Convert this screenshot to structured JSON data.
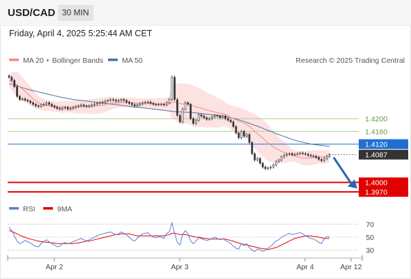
{
  "header": {
    "symbol": "USD/CAD",
    "timeframe": "30 MIN",
    "datetime": "Friday, April 4, 2025 5:25:44 AM CET"
  },
  "legend": {
    "ma20_label": "MA 20 + Bollinger Bands",
    "ma50_label": "MA 50",
    "credit": "Research © 2025 Trading Central",
    "rsi_label": "RSI",
    "ma9_label": "9MA"
  },
  "colors": {
    "ma20": "#f08a8a",
    "ma50": "#4a6fa5",
    "bands_fill": "#fde2e2",
    "candle": "#333333",
    "support_red": "#e00000",
    "resistance_green": "#a9d18e",
    "last_price_blue": "#1f6fd1",
    "arrow": "#2a64b0",
    "rsi": "#5b7fd6",
    "rsi_ma": "#e00000"
  },
  "chart_data": [
    {
      "type": "candlestick",
      "title": "USD/CAD 30 MIN",
      "ylim": [
        1.3955,
        1.436
      ],
      "x_tick_labels": [
        "Apr 2",
        "Apr 3",
        "Apr 4",
        "Apr 12"
      ],
      "price_levels": [
        {
          "label": "1.4200",
          "value": 1.42,
          "kind": "resistance"
        },
        {
          "label": "1.4160",
          "value": 1.416,
          "kind": "resistance"
        },
        {
          "label": "1.4120",
          "value": 1.412,
          "kind": "pivot"
        },
        {
          "label": "1.4087",
          "value": 1.4087,
          "kind": "last"
        },
        {
          "label": "1.4000",
          "value": 1.4,
          "kind": "support"
        },
        {
          "label": "1.3970",
          "value": 1.397,
          "kind": "support"
        }
      ],
      "close": [
        1.433,
        1.432,
        1.43,
        1.427,
        1.426,
        1.4262,
        1.4258,
        1.4255,
        1.425,
        1.4245,
        1.424,
        1.4238,
        1.4243,
        1.4245,
        1.425,
        1.4245,
        1.424,
        1.4236,
        1.4232,
        1.423,
        1.4233,
        1.4235,
        1.423,
        1.4232,
        1.4235,
        1.4238,
        1.424,
        1.4243,
        1.424,
        1.4238,
        1.424,
        1.4243,
        1.4246,
        1.4248,
        1.425,
        1.4252,
        1.4255,
        1.4257,
        1.426,
        1.4258,
        1.4255,
        1.4257,
        1.426,
        1.4257,
        1.4252,
        1.4248,
        1.4244,
        1.424,
        1.4243,
        1.4246,
        1.4249,
        1.4251,
        1.4252,
        1.4248,
        1.4245,
        1.4244,
        1.4245,
        1.4245,
        1.4243,
        1.425,
        1.426,
        1.433,
        1.426,
        1.421,
        1.419,
        1.423,
        1.425,
        1.4245,
        1.42,
        1.4185,
        1.4195,
        1.4212,
        1.4208,
        1.4203,
        1.4198,
        1.42,
        1.4205,
        1.421,
        1.4208,
        1.4203,
        1.4208,
        1.42,
        1.4195,
        1.419,
        1.4175,
        1.4155,
        1.414,
        1.416,
        1.4145,
        1.415,
        1.4125,
        1.409,
        1.407,
        1.4075,
        1.406,
        1.4048,
        1.4043,
        1.4045,
        1.4048,
        1.4055,
        1.4065,
        1.407,
        1.408,
        1.4085,
        1.4088,
        1.409,
        1.4087,
        1.4088,
        1.409,
        1.4092,
        1.409,
        1.4088,
        1.4085,
        1.4083,
        1.4082,
        1.4078,
        1.4072,
        1.4068,
        1.4075,
        1.4082,
        1.4087
      ],
      "ma20": [
        1.432,
        1.4316,
        1.4312,
        1.4306,
        1.43,
        1.4293,
        1.4286,
        1.4278,
        1.427,
        1.4262,
        1.4256,
        1.425,
        1.4246,
        1.4243,
        1.4241,
        1.424,
        1.4239,
        1.4238,
        1.4237,
        1.4237,
        1.4237,
        1.4237,
        1.4237,
        1.4237,
        1.4237,
        1.4237,
        1.4237,
        1.4238,
        1.4238,
        1.4238,
        1.4238,
        1.4238,
        1.4239,
        1.424,
        1.4241,
        1.4242,
        1.4244,
        1.4246,
        1.4248,
        1.4249,
        1.4249,
        1.425,
        1.425,
        1.425,
        1.425,
        1.425,
        1.425,
        1.4249,
        1.4249,
        1.4249,
        1.4249,
        1.4249,
        1.4248,
        1.4248,
        1.4247,
        1.4246,
        1.4246,
        1.4246,
        1.4246,
        1.4246,
        1.4246,
        1.4251,
        1.4252,
        1.425,
        1.4247,
        1.4246,
        1.4247,
        1.4247,
        1.4244,
        1.424,
        1.4237,
        1.4235,
        1.4233,
        1.423,
        1.4227,
        1.4225,
        1.4223,
        1.4221,
        1.4219,
        1.4217,
        1.4216,
        1.4213,
        1.421,
        1.4204,
        1.42,
        1.4197,
        1.4191,
        1.419,
        1.4185,
        1.4181,
        1.4176,
        1.4168,
        1.416,
        1.4153,
        1.4146,
        1.4139,
        1.4131,
        1.4124,
        1.4117,
        1.4111,
        1.4106,
        1.4102,
        1.4098,
        1.4094,
        1.4091,
        1.4088,
        1.4085,
        1.4083,
        1.408,
        1.4078,
        1.4076,
        1.4076,
        1.4076,
        1.4077,
        1.4078,
        1.4079,
        1.408,
        1.408,
        1.408,
        1.4081,
        1.4081
      ],
      "ma50": [
        1.431,
        1.4308,
        1.4306,
        1.4303,
        1.43,
        1.4297,
        1.4295,
        1.4292,
        1.429,
        1.4288,
        1.4286,
        1.4284,
        1.4282,
        1.428,
        1.4278,
        1.4276,
        1.4274,
        1.4272,
        1.427,
        1.4268,
        1.4266,
        1.4265,
        1.4263,
        1.4262,
        1.426,
        1.4259,
        1.4258,
        1.4257,
        1.4256,
        1.4255,
        1.4254,
        1.4253,
        1.4252,
        1.4251,
        1.425,
        1.4249,
        1.4248,
        1.4247,
        1.4246,
        1.4245,
        1.4244,
        1.4243,
        1.4242,
        1.4241,
        1.424,
        1.4239,
        1.4238,
        1.4237,
        1.4236,
        1.4235,
        1.4234,
        1.4233,
        1.4232,
        1.4231,
        1.423,
        1.4229,
        1.4228,
        1.4227,
        1.4226,
        1.4225,
        1.4224,
        1.4223,
        1.4222,
        1.4222,
        1.4221,
        1.4221,
        1.422,
        1.422,
        1.4219,
        1.4219,
        1.4218,
        1.4217,
        1.4216,
        1.4215,
        1.4214,
        1.4213,
        1.4212,
        1.4211,
        1.421,
        1.4209,
        1.4208,
        1.4207,
        1.4205,
        1.4203,
        1.4201,
        1.4199,
        1.4196,
        1.4194,
        1.4191,
        1.4188,
        1.4185,
        1.4182,
        1.4179,
        1.4176,
        1.4173,
        1.417,
        1.4166,
        1.4163,
        1.416,
        1.4157,
        1.4153,
        1.415,
        1.4147,
        1.4144,
        1.4141,
        1.4138,
        1.4135,
        1.4132,
        1.413,
        1.4128,
        1.4126,
        1.4124,
        1.4122,
        1.412,
        1.4119,
        1.4118,
        1.4117,
        1.4116,
        1.4115,
        1.4114,
        1.4113
      ],
      "bb_upper": [
        1.434,
        1.4345,
        1.4347,
        1.4346,
        1.434,
        1.433,
        1.432,
        1.431,
        1.43,
        1.429,
        1.428,
        1.4272,
        1.4266,
        1.4262,
        1.4258,
        1.4256,
        1.4255,
        1.4254,
        1.4254,
        1.4255,
        1.4256,
        1.4256,
        1.4255,
        1.4255,
        1.4256,
        1.4257,
        1.4258,
        1.4259,
        1.4259,
        1.426,
        1.4261,
        1.4262,
        1.4263,
        1.4264,
        1.4265,
        1.4266,
        1.4267,
        1.4268,
        1.4268,
        1.4267,
        1.4266,
        1.4265,
        1.4265,
        1.4265,
        1.4266,
        1.4266,
        1.4266,
        1.4265,
        1.4264,
        1.4263,
        1.4263,
        1.4263,
        1.4263,
        1.4264,
        1.4264,
        1.4264,
        1.4265,
        1.4265,
        1.4265,
        1.4266,
        1.427,
        1.43,
        1.431,
        1.431,
        1.431,
        1.431,
        1.431,
        1.431,
        1.4308,
        1.4305,
        1.43,
        1.4296,
        1.4292,
        1.4287,
        1.4283,
        1.4278,
        1.4274,
        1.427,
        1.4266,
        1.4262,
        1.4258,
        1.425,
        1.4246,
        1.4242,
        1.424,
        1.4238,
        1.4236,
        1.4233,
        1.423,
        1.4226,
        1.4222,
        1.4218,
        1.4214,
        1.421,
        1.4203,
        1.4197,
        1.419,
        1.418,
        1.417,
        1.416,
        1.415,
        1.4142,
        1.4135,
        1.4128,
        1.412,
        1.4112,
        1.4104,
        1.41,
        1.4099,
        1.4098,
        1.4098,
        1.4099,
        1.41,
        1.4101,
        1.4101,
        1.4101,
        1.4101,
        1.4101,
        1.4101,
        1.4101,
        1.41
      ],
      "bb_lower": [
        1.43,
        1.4287,
        1.4277,
        1.4266,
        1.426,
        1.4256,
        1.4252,
        1.4246,
        1.424,
        1.4234,
        1.4232,
        1.4228,
        1.4226,
        1.4224,
        1.4224,
        1.4224,
        1.4223,
        1.4222,
        1.422,
        1.4219,
        1.4218,
        1.4218,
        1.4219,
        1.4219,
        1.4218,
        1.4217,
        1.4216,
        1.4217,
        1.4217,
        1.4216,
        1.4215,
        1.4214,
        1.4215,
        1.4216,
        1.4217,
        1.4218,
        1.4221,
        1.4224,
        1.4228,
        1.4231,
        1.4232,
        1.4235,
        1.4235,
        1.4235,
        1.4234,
        1.4234,
        1.4234,
        1.4233,
        1.4234,
        1.4235,
        1.4235,
        1.4235,
        1.4233,
        1.4232,
        1.423,
        1.4228,
        1.4227,
        1.4227,
        1.4227,
        1.4226,
        1.4222,
        1.4202,
        1.4194,
        1.419,
        1.4184,
        1.4182,
        1.4184,
        1.4184,
        1.418,
        1.4175,
        1.4174,
        1.4174,
        1.4174,
        1.4173,
        1.4171,
        1.4172,
        1.4172,
        1.4172,
        1.4172,
        1.4172,
        1.4174,
        1.4176,
        1.4174,
        1.4166,
        1.416,
        1.4156,
        1.4146,
        1.4147,
        1.414,
        1.4136,
        1.413,
        1.4118,
        1.4106,
        1.4096,
        1.4089,
        1.4081,
        1.4072,
        1.4068,
        1.4064,
        1.4062,
        1.4062,
        1.4062,
        1.4061,
        1.406,
        1.4062,
        1.4064,
        1.4066,
        1.4066,
        1.4061,
        1.4058,
        1.4054,
        1.4053,
        1.4052,
        1.4053,
        1.4055,
        1.4057,
        1.4059,
        1.4059,
        1.4059,
        1.4061,
        1.4062
      ]
    },
    {
      "type": "line",
      "title": "RSI",
      "ylim": [
        20,
        80
      ],
      "y_ticks": [
        70,
        50,
        30
      ],
      "series": [
        {
          "name": "RSI",
          "values": [
            65,
            60,
            52,
            44,
            40,
            42,
            45,
            43,
            41,
            38,
            36,
            35,
            40,
            43,
            46,
            43,
            40,
            38,
            35,
            36,
            40,
            42,
            40,
            41,
            43,
            45,
            46,
            48,
            46,
            44,
            46,
            48,
            50,
            52,
            54,
            55,
            56,
            57,
            58,
            56,
            54,
            55,
            58,
            56,
            53,
            50,
            46,
            44,
            48,
            52,
            55,
            56,
            57,
            53,
            50,
            49,
            51,
            50,
            48,
            56,
            58,
            72,
            56,
            42,
            38,
            54,
            60,
            56,
            44,
            40,
            44,
            49,
            48,
            46,
            45,
            46,
            48,
            50,
            48,
            46,
            48,
            45,
            43,
            40,
            36,
            33,
            32,
            40,
            37,
            40,
            34,
            30,
            28,
            32,
            30,
            28,
            30,
            33,
            36,
            40,
            44,
            46,
            50,
            52,
            54,
            56,
            54,
            55,
            56,
            57,
            55,
            52,
            50,
            48,
            47,
            45,
            42,
            40,
            47,
            51,
            51
          ]
        },
        {
          "name": "9MA",
          "values": [
            60,
            59,
            57,
            55,
            53,
            51,
            50,
            48,
            47,
            46,
            45,
            44,
            43,
            43,
            42,
            42,
            41,
            41,
            40,
            40,
            40,
            40,
            40,
            40,
            40,
            41,
            41,
            42,
            43,
            44,
            44,
            45,
            46,
            47,
            48,
            49,
            50,
            51,
            52,
            53,
            54,
            54,
            55,
            55,
            55,
            55,
            54,
            53,
            52,
            52,
            52,
            52,
            52,
            52,
            52,
            52,
            52,
            52,
            52,
            53,
            54,
            56,
            56,
            55,
            54,
            54,
            54,
            53,
            52,
            51,
            50,
            50,
            49,
            48,
            48,
            47,
            47,
            47,
            47,
            47,
            47,
            47,
            46,
            45,
            44,
            42,
            41,
            40,
            39,
            38,
            37,
            36,
            35,
            34,
            33,
            32,
            32,
            31,
            32,
            33,
            34,
            36,
            38,
            40,
            42,
            44,
            46,
            48,
            49,
            50,
            51,
            52,
            52,
            52,
            51,
            51,
            50,
            49,
            48,
            48,
            48
          ]
        }
      ]
    }
  ]
}
